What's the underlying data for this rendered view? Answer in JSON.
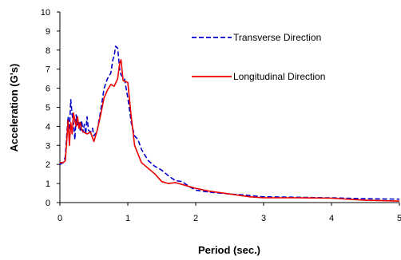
{
  "chart_data": {
    "type": "line",
    "xlabel": "Period (sec.)",
    "ylabel": "Acceleration (G's)",
    "xlim": [
      0,
      5
    ],
    "ylim": [
      0,
      10
    ],
    "xticks": [
      "0",
      "1",
      "2",
      "3",
      "4",
      "5"
    ],
    "yticks": [
      "0",
      "1",
      "2",
      "3",
      "4",
      "5",
      "6",
      "7",
      "8",
      "9",
      "10"
    ],
    "grid": false,
    "legend_position": "top-right",
    "series": [
      {
        "name": "Transverse Direction",
        "color": "#0000cc",
        "style": "dashed",
        "points": [
          [
            0,
            2.0
          ],
          [
            0.05,
            2.1
          ],
          [
            0.08,
            2.4
          ],
          [
            0.1,
            3.5
          ],
          [
            0.12,
            4.5
          ],
          [
            0.14,
            3.8
          ],
          [
            0.16,
            5.4
          ],
          [
            0.18,
            4.6
          ],
          [
            0.2,
            4.2
          ],
          [
            0.22,
            3.3
          ],
          [
            0.24,
            4.6
          ],
          [
            0.26,
            4.0
          ],
          [
            0.28,
            4.2
          ],
          [
            0.3,
            3.8
          ],
          [
            0.32,
            4.3
          ],
          [
            0.34,
            3.7
          ],
          [
            0.36,
            4.1
          ],
          [
            0.38,
            3.6
          ],
          [
            0.4,
            4.5
          ],
          [
            0.42,
            3.8
          ],
          [
            0.45,
            3.7
          ],
          [
            0.48,
            3.9
          ],
          [
            0.5,
            3.5
          ],
          [
            0.55,
            3.8
          ],
          [
            0.6,
            4.8
          ],
          [
            0.65,
            6.0
          ],
          [
            0.7,
            6.5
          ],
          [
            0.75,
            6.8
          ],
          [
            0.78,
            7.5
          ],
          [
            0.8,
            7.7
          ],
          [
            0.82,
            8.2
          ],
          [
            0.85,
            8.1
          ],
          [
            0.88,
            7.0
          ],
          [
            0.9,
            6.7
          ],
          [
            0.95,
            6.5
          ],
          [
            1.0,
            5.5
          ],
          [
            1.05,
            4.2
          ],
          [
            1.1,
            3.5
          ],
          [
            1.15,
            3.3
          ],
          [
            1.2,
            2.8
          ],
          [
            1.3,
            2.2
          ],
          [
            1.4,
            1.9
          ],
          [
            1.5,
            1.7
          ],
          [
            1.6,
            1.4
          ],
          [
            1.7,
            1.15
          ],
          [
            1.8,
            1.1
          ],
          [
            1.9,
            0.85
          ],
          [
            2.0,
            0.65
          ],
          [
            2.2,
            0.55
          ],
          [
            2.5,
            0.45
          ],
          [
            2.7,
            0.4
          ],
          [
            3.0,
            0.3
          ],
          [
            3.5,
            0.28
          ],
          [
            3.9,
            0.25
          ],
          [
            4.0,
            0.25
          ],
          [
            4.5,
            0.2
          ],
          [
            5.0,
            0.18
          ]
        ]
      },
      {
        "name": "Longitudinal Direction",
        "color": "#ee0000",
        "style": "solid",
        "points": [
          [
            0,
            2.1
          ],
          [
            0.05,
            2.1
          ],
          [
            0.08,
            2.2
          ],
          [
            0.1,
            3.2
          ],
          [
            0.12,
            4.3
          ],
          [
            0.14,
            3.0
          ],
          [
            0.16,
            4.2
          ],
          [
            0.18,
            3.6
          ],
          [
            0.2,
            4.7
          ],
          [
            0.22,
            4.3
          ],
          [
            0.24,
            4.0
          ],
          [
            0.26,
            4.5
          ],
          [
            0.28,
            3.9
          ],
          [
            0.3,
            4.2
          ],
          [
            0.32,
            3.8
          ],
          [
            0.35,
            3.7
          ],
          [
            0.4,
            3.6
          ],
          [
            0.45,
            3.7
          ],
          [
            0.5,
            3.2
          ],
          [
            0.55,
            3.8
          ],
          [
            0.6,
            4.6
          ],
          [
            0.65,
            5.5
          ],
          [
            0.7,
            5.9
          ],
          [
            0.75,
            6.2
          ],
          [
            0.8,
            6.1
          ],
          [
            0.85,
            6.5
          ],
          [
            0.88,
            7.3
          ],
          [
            0.9,
            7.5
          ],
          [
            0.93,
            6.4
          ],
          [
            1.0,
            6.3
          ],
          [
            1.05,
            4.5
          ],
          [
            1.1,
            3.0
          ],
          [
            1.2,
            2.1
          ],
          [
            1.3,
            1.8
          ],
          [
            1.4,
            1.5
          ],
          [
            1.5,
            1.1
          ],
          [
            1.6,
            1.0
          ],
          [
            1.7,
            1.05
          ],
          [
            1.8,
            0.95
          ],
          [
            2.0,
            0.75
          ],
          [
            2.2,
            0.6
          ],
          [
            2.5,
            0.45
          ],
          [
            2.8,
            0.3
          ],
          [
            3.0,
            0.25
          ],
          [
            3.5,
            0.25
          ],
          [
            4.0,
            0.23
          ],
          [
            4.5,
            0.12
          ],
          [
            5.0,
            0.08
          ]
        ]
      }
    ]
  }
}
